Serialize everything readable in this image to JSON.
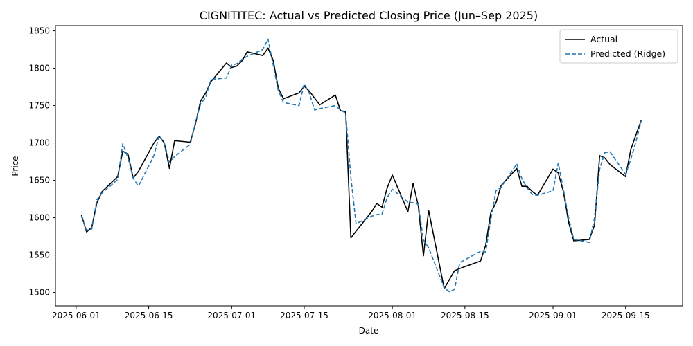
{
  "chart_data": {
    "type": "line",
    "title": "CIGNITITEC: Actual vs Predicted Closing Price (Jun–Sep 2025)",
    "xlabel": "Date",
    "ylabel": "Price",
    "xlim": [
      "2025-05-28",
      "2025-09-26"
    ],
    "ylim": [
      1482,
      1857
    ],
    "x_ticks": [
      "2025-06-01",
      "2025-06-15",
      "2025-07-01",
      "2025-07-15",
      "2025-08-01",
      "2025-08-15",
      "2025-09-01",
      "2025-09-15"
    ],
    "y_ticks": [
      1500,
      1550,
      1600,
      1650,
      1700,
      1750,
      1800,
      1850
    ],
    "grid": false,
    "legend_position": "top-right",
    "series": [
      {
        "name": "Actual",
        "color": "#000000",
        "style": "solid",
        "x": [
          "2025-06-02",
          "2025-06-03",
          "2025-06-04",
          "2025-06-05",
          "2025-06-06",
          "2025-06-09",
          "2025-06-10",
          "2025-06-11",
          "2025-06-12",
          "2025-06-13",
          "2025-06-16",
          "2025-06-17",
          "2025-06-18",
          "2025-06-19",
          "2025-06-20",
          "2025-06-23",
          "2025-06-24",
          "2025-06-25",
          "2025-06-26",
          "2025-06-27",
          "2025-06-30",
          "2025-07-01",
          "2025-07-02",
          "2025-07-03",
          "2025-07-04",
          "2025-07-07",
          "2025-07-08",
          "2025-07-09",
          "2025-07-10",
          "2025-07-11",
          "2025-07-14",
          "2025-07-15",
          "2025-07-16",
          "2025-07-17",
          "2025-07-18",
          "2025-07-21",
          "2025-07-22",
          "2025-07-23",
          "2025-07-24",
          "2025-07-25",
          "2025-07-28",
          "2025-07-29",
          "2025-07-30",
          "2025-07-31",
          "2025-08-01",
          "2025-08-04",
          "2025-08-05",
          "2025-08-06",
          "2025-08-07",
          "2025-08-08",
          "2025-08-11",
          "2025-08-12",
          "2025-08-13",
          "2025-08-14",
          "2025-08-18",
          "2025-08-19",
          "2025-08-20",
          "2025-08-21",
          "2025-08-22",
          "2025-08-25",
          "2025-08-26",
          "2025-08-27",
          "2025-08-28",
          "2025-08-29",
          "2025-09-01",
          "2025-09-02",
          "2025-09-03",
          "2025-09-04",
          "2025-09-05",
          "2025-09-08",
          "2025-09-09",
          "2025-09-10",
          "2025-09-11",
          "2025-09-12",
          "2025-09-15",
          "2025-09-16",
          "2025-09-17",
          "2025-09-18"
        ],
        "values": [
          1604,
          1581,
          1587,
          1620,
          1635,
          1655,
          1689,
          1685,
          1653,
          1662,
          1700,
          1709,
          1700,
          1666,
          1703,
          1701,
          1725,
          1756,
          1767,
          1782,
          1807,
          1801,
          1803,
          1810,
          1822,
          1817,
          1827,
          1811,
          1773,
          1759,
          1767,
          1776,
          1769,
          1760,
          1751,
          1764,
          1743,
          1742,
          1573,
          1582,
          1608,
          1619,
          1614,
          1640,
          1657,
          1608,
          1646,
          1616,
          1549,
          1610,
          1505,
          1517,
          1529,
          1532,
          1542,
          1563,
          1607,
          1620,
          1643,
          1666,
          1642,
          1642,
          1635,
          1630,
          1665,
          1660,
          1635,
          1594,
          1569,
          1571,
          1590,
          1683,
          1680,
          1671,
          1655,
          1691,
          1711,
          1730
        ]
      },
      {
        "name": "Predicted (Ridge)",
        "color": "#1f77b4",
        "style": "dashed",
        "x": [
          "2025-06-02",
          "2025-06-03",
          "2025-06-04",
          "2025-06-05",
          "2025-06-06",
          "2025-06-09",
          "2025-06-10",
          "2025-06-11",
          "2025-06-12",
          "2025-06-13",
          "2025-06-16",
          "2025-06-17",
          "2025-06-18",
          "2025-06-19",
          "2025-06-20",
          "2025-06-23",
          "2025-06-24",
          "2025-06-25",
          "2025-06-26",
          "2025-06-27",
          "2025-06-30",
          "2025-07-01",
          "2025-07-02",
          "2025-07-03",
          "2025-07-04",
          "2025-07-07",
          "2025-07-08",
          "2025-07-09",
          "2025-07-10",
          "2025-07-11",
          "2025-07-14",
          "2025-07-15",
          "2025-07-16",
          "2025-07-17",
          "2025-07-18",
          "2025-07-21",
          "2025-07-22",
          "2025-07-23",
          "2025-07-24",
          "2025-07-25",
          "2025-07-28",
          "2025-07-29",
          "2025-07-30",
          "2025-07-31",
          "2025-08-01",
          "2025-08-04",
          "2025-08-05",
          "2025-08-06",
          "2025-08-07",
          "2025-08-08",
          "2025-08-11",
          "2025-08-12",
          "2025-08-13",
          "2025-08-14",
          "2025-08-18",
          "2025-08-19",
          "2025-08-20",
          "2025-08-21",
          "2025-08-22",
          "2025-08-25",
          "2025-08-26",
          "2025-08-27",
          "2025-08-28",
          "2025-08-29",
          "2025-09-01",
          "2025-09-02",
          "2025-09-03",
          "2025-09-04",
          "2025-09-05",
          "2025-09-08",
          "2025-09-09",
          "2025-09-10",
          "2025-09-11",
          "2025-09-12",
          "2025-09-15",
          "2025-09-16",
          "2025-09-17",
          "2025-09-18"
        ],
        "values": [
          1602,
          1583,
          1585,
          1624,
          1633,
          1651,
          1699,
          1680,
          1653,
          1642,
          1683,
          1710,
          1700,
          1674,
          1682,
          1698,
          1727,
          1752,
          1761,
          1785,
          1787,
          1804,
          1806,
          1812,
          1816,
          1825,
          1839,
          1805,
          1770,
          1754,
          1750,
          1779,
          1766,
          1744,
          1746,
          1750,
          1744,
          1740,
          1654,
          1592,
          1602,
          1604,
          1605,
          1627,
          1638,
          1621,
          1620,
          1618,
          1570,
          1560,
          1506,
          1501,
          1504,
          1540,
          1555,
          1554,
          1598,
          1636,
          1641,
          1672,
          1652,
          1640,
          1631,
          1630,
          1636,
          1673,
          1638,
          1600,
          1571,
          1567,
          1600,
          1665,
          1687,
          1688,
          1658,
          1678,
          1702,
          1729
        ]
      }
    ]
  }
}
